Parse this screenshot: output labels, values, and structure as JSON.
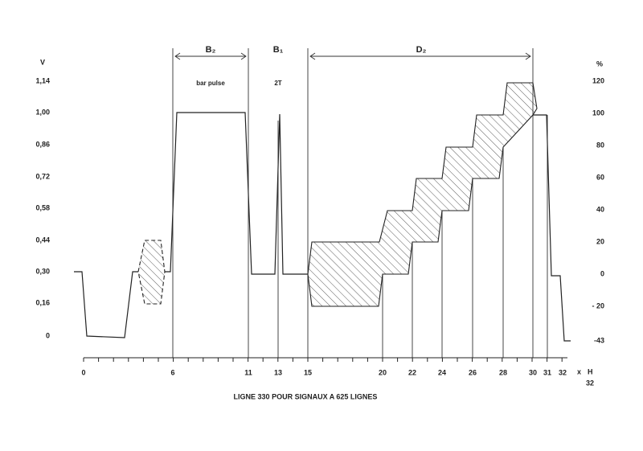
{
  "left_axis": {
    "unit": "V",
    "labels": [
      "1,14",
      "1,00",
      "0,86",
      "0,72",
      "0,58",
      "0,44",
      "0,30",
      "0,16",
      "0"
    ]
  },
  "right_axis": {
    "unit": "%",
    "labels": [
      "120",
      "100",
      "80",
      "60",
      "40",
      "20",
      "0",
      "- 20",
      "-43"
    ]
  },
  "x_axis": {
    "labels": [
      "0",
      "6",
      "11",
      "13",
      "15",
      "20",
      "22",
      "24",
      "26",
      "28",
      "30",
      "31",
      "32"
    ],
    "unit_prefix": "x",
    "unit": "H",
    "unit_denominator": "32"
  },
  "spans": [
    "B₂",
    "B₁",
    "D₂"
  ],
  "annotations": [
    "bar pulse",
    "2T"
  ],
  "caption": "LIGNE 330 POUR SIGNAUX A 625 LIGNES"
}
